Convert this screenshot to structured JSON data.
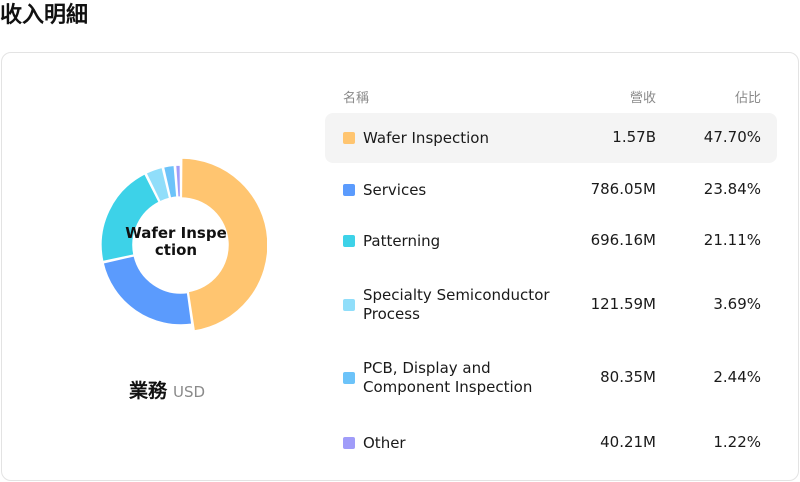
{
  "page": {
    "title": "收入明細"
  },
  "donut": {
    "center_label": "Wafer Inspection",
    "segment_name": "業務",
    "currency": "USD"
  },
  "table": {
    "headers": {
      "name": "名稱",
      "revenue": "營收",
      "share": "佔比"
    },
    "rows": [
      {
        "name": "Wafer Inspection",
        "revenue": "1.57B",
        "share": "47.70%",
        "color": "#FFC570",
        "active": true
      },
      {
        "name": "Services",
        "revenue": "786.05M",
        "share": "23.84%",
        "color": "#5B9BFD",
        "active": false
      },
      {
        "name": "Patterning",
        "revenue": "696.16M",
        "share": "21.11%",
        "color": "#3DD2E8",
        "active": false
      },
      {
        "name": "Specialty Semiconductor Process",
        "revenue": "121.59M",
        "share": "3.69%",
        "color": "#90DEFA",
        "active": false
      },
      {
        "name": "PCB, Display and Component Inspection",
        "revenue": "80.35M",
        "share": "2.44%",
        "color": "#6CC3F9",
        "active": false
      },
      {
        "name": "Other",
        "revenue": "40.21M",
        "share": "1.22%",
        "color": "#A09CF9",
        "active": false
      }
    ]
  },
  "chart_data": {
    "type": "pie",
    "categories": [
      "Wafer Inspection",
      "Services",
      "Patterning",
      "Specialty Semiconductor Process",
      "PCB, Display and Component Inspection",
      "Other"
    ],
    "values": [
      47.7,
      23.84,
      21.11,
      3.69,
      2.44,
      1.22
    ],
    "revenue": [
      "1.57B",
      "786.05M",
      "696.16M",
      "121.59M",
      "80.35M",
      "40.21M"
    ],
    "colors": [
      "#FFC570",
      "#5B9BFD",
      "#3DD2E8",
      "#90DEFA",
      "#6CC3F9",
      "#A09CF9"
    ],
    "highlighted": "Wafer Inspection",
    "donut": true
  }
}
